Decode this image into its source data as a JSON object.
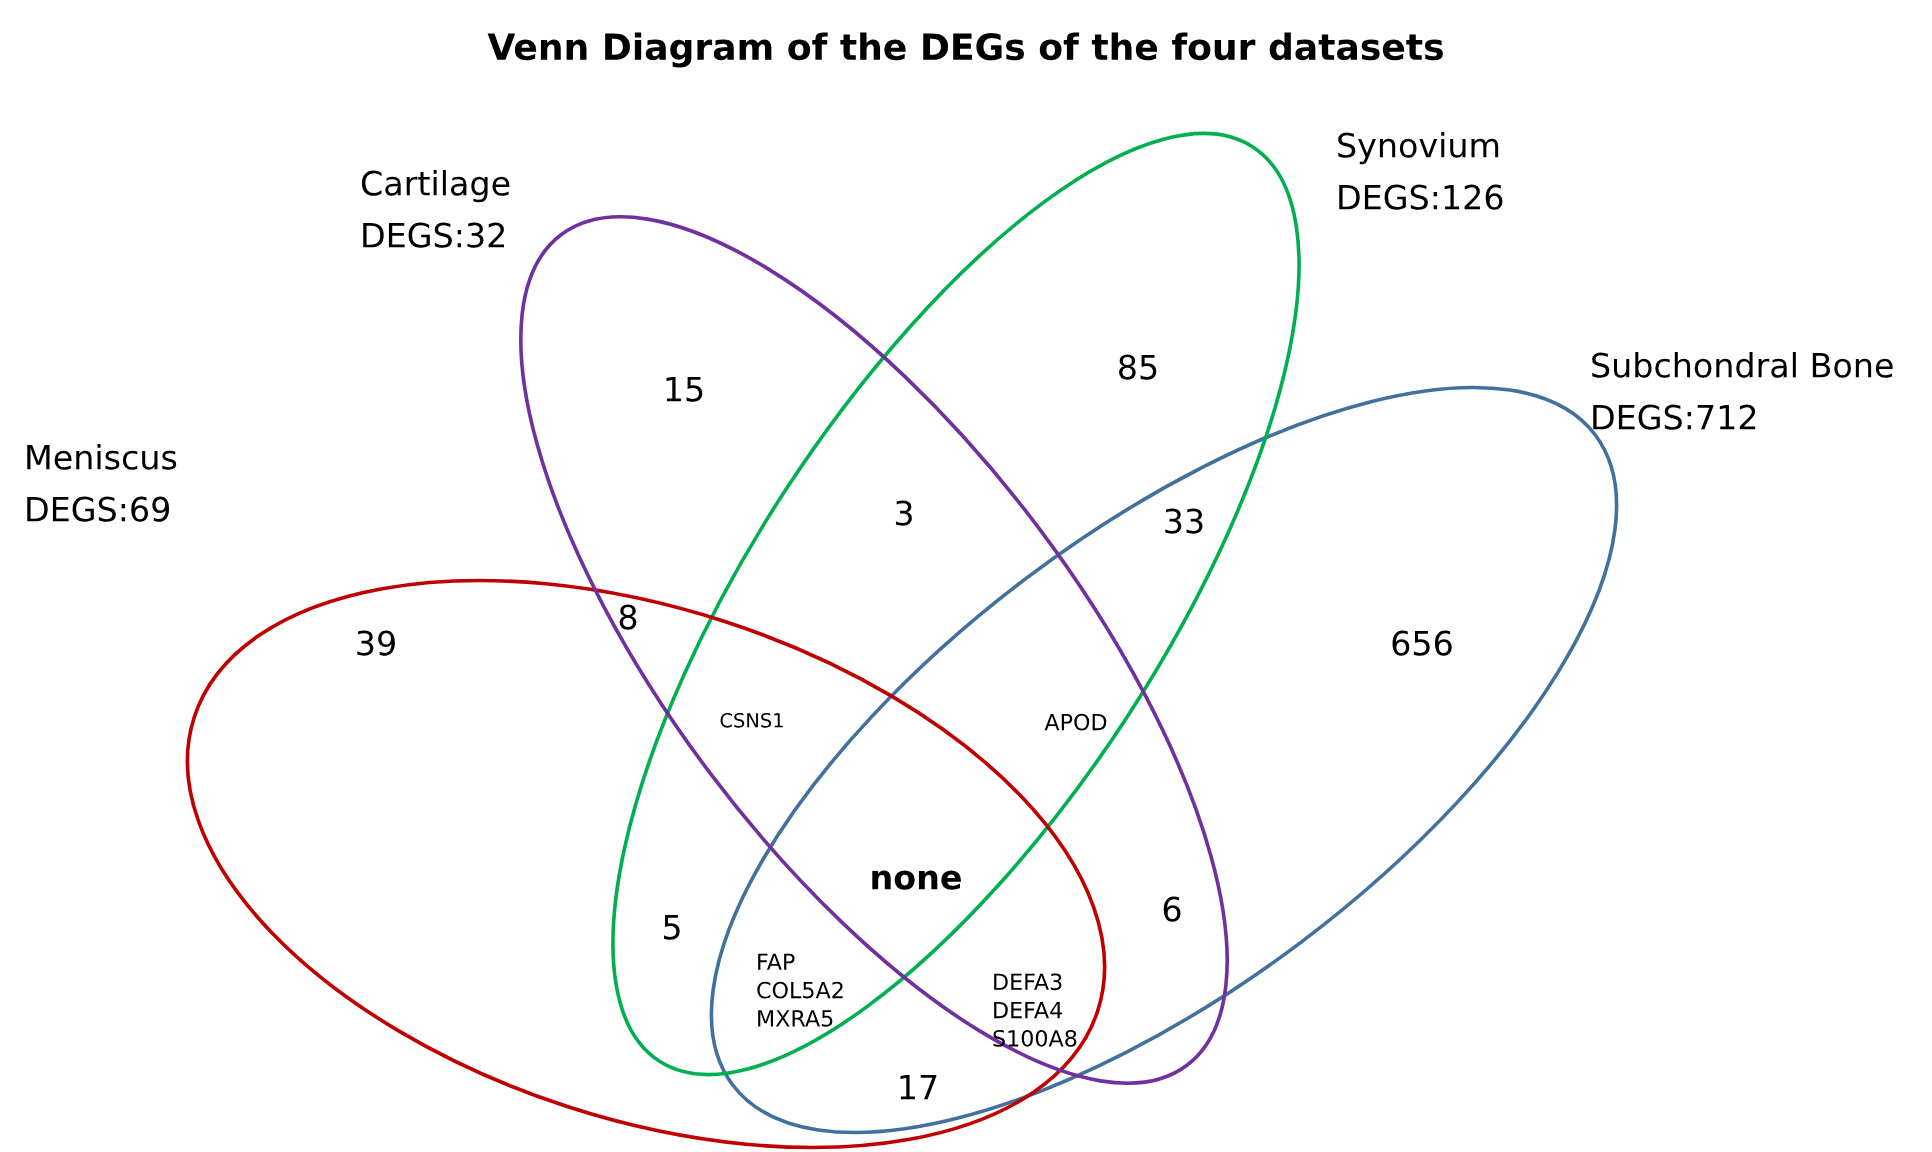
{
  "chart_data": {
    "type": "other",
    "title": "Venn Diagram of the DEGs of the four datasets",
    "categories": [
      "Meniscus",
      "Cartilage",
      "Synovium",
      "Subchondral Bone"
    ],
    "values": [
      69,
      32,
      126,
      712
    ],
    "value_labels": [
      "DEGS:69",
      "DEGS:32",
      "DEGS:126",
      "DEGS:712"
    ],
    "colors": [
      "#c00000",
      "#7030a0",
      "#00b050",
      "#41719c"
    ],
    "annotations": [
      "39",
      "15",
      "85",
      "656",
      "8",
      "3",
      "33",
      "CSNS1",
      "APOD",
      "none",
      "5",
      "6",
      "FAP\nCOL5A2\nMXRA5",
      "DEFA3\nDEFA4\nS100A8",
      "17"
    ]
  }
}
